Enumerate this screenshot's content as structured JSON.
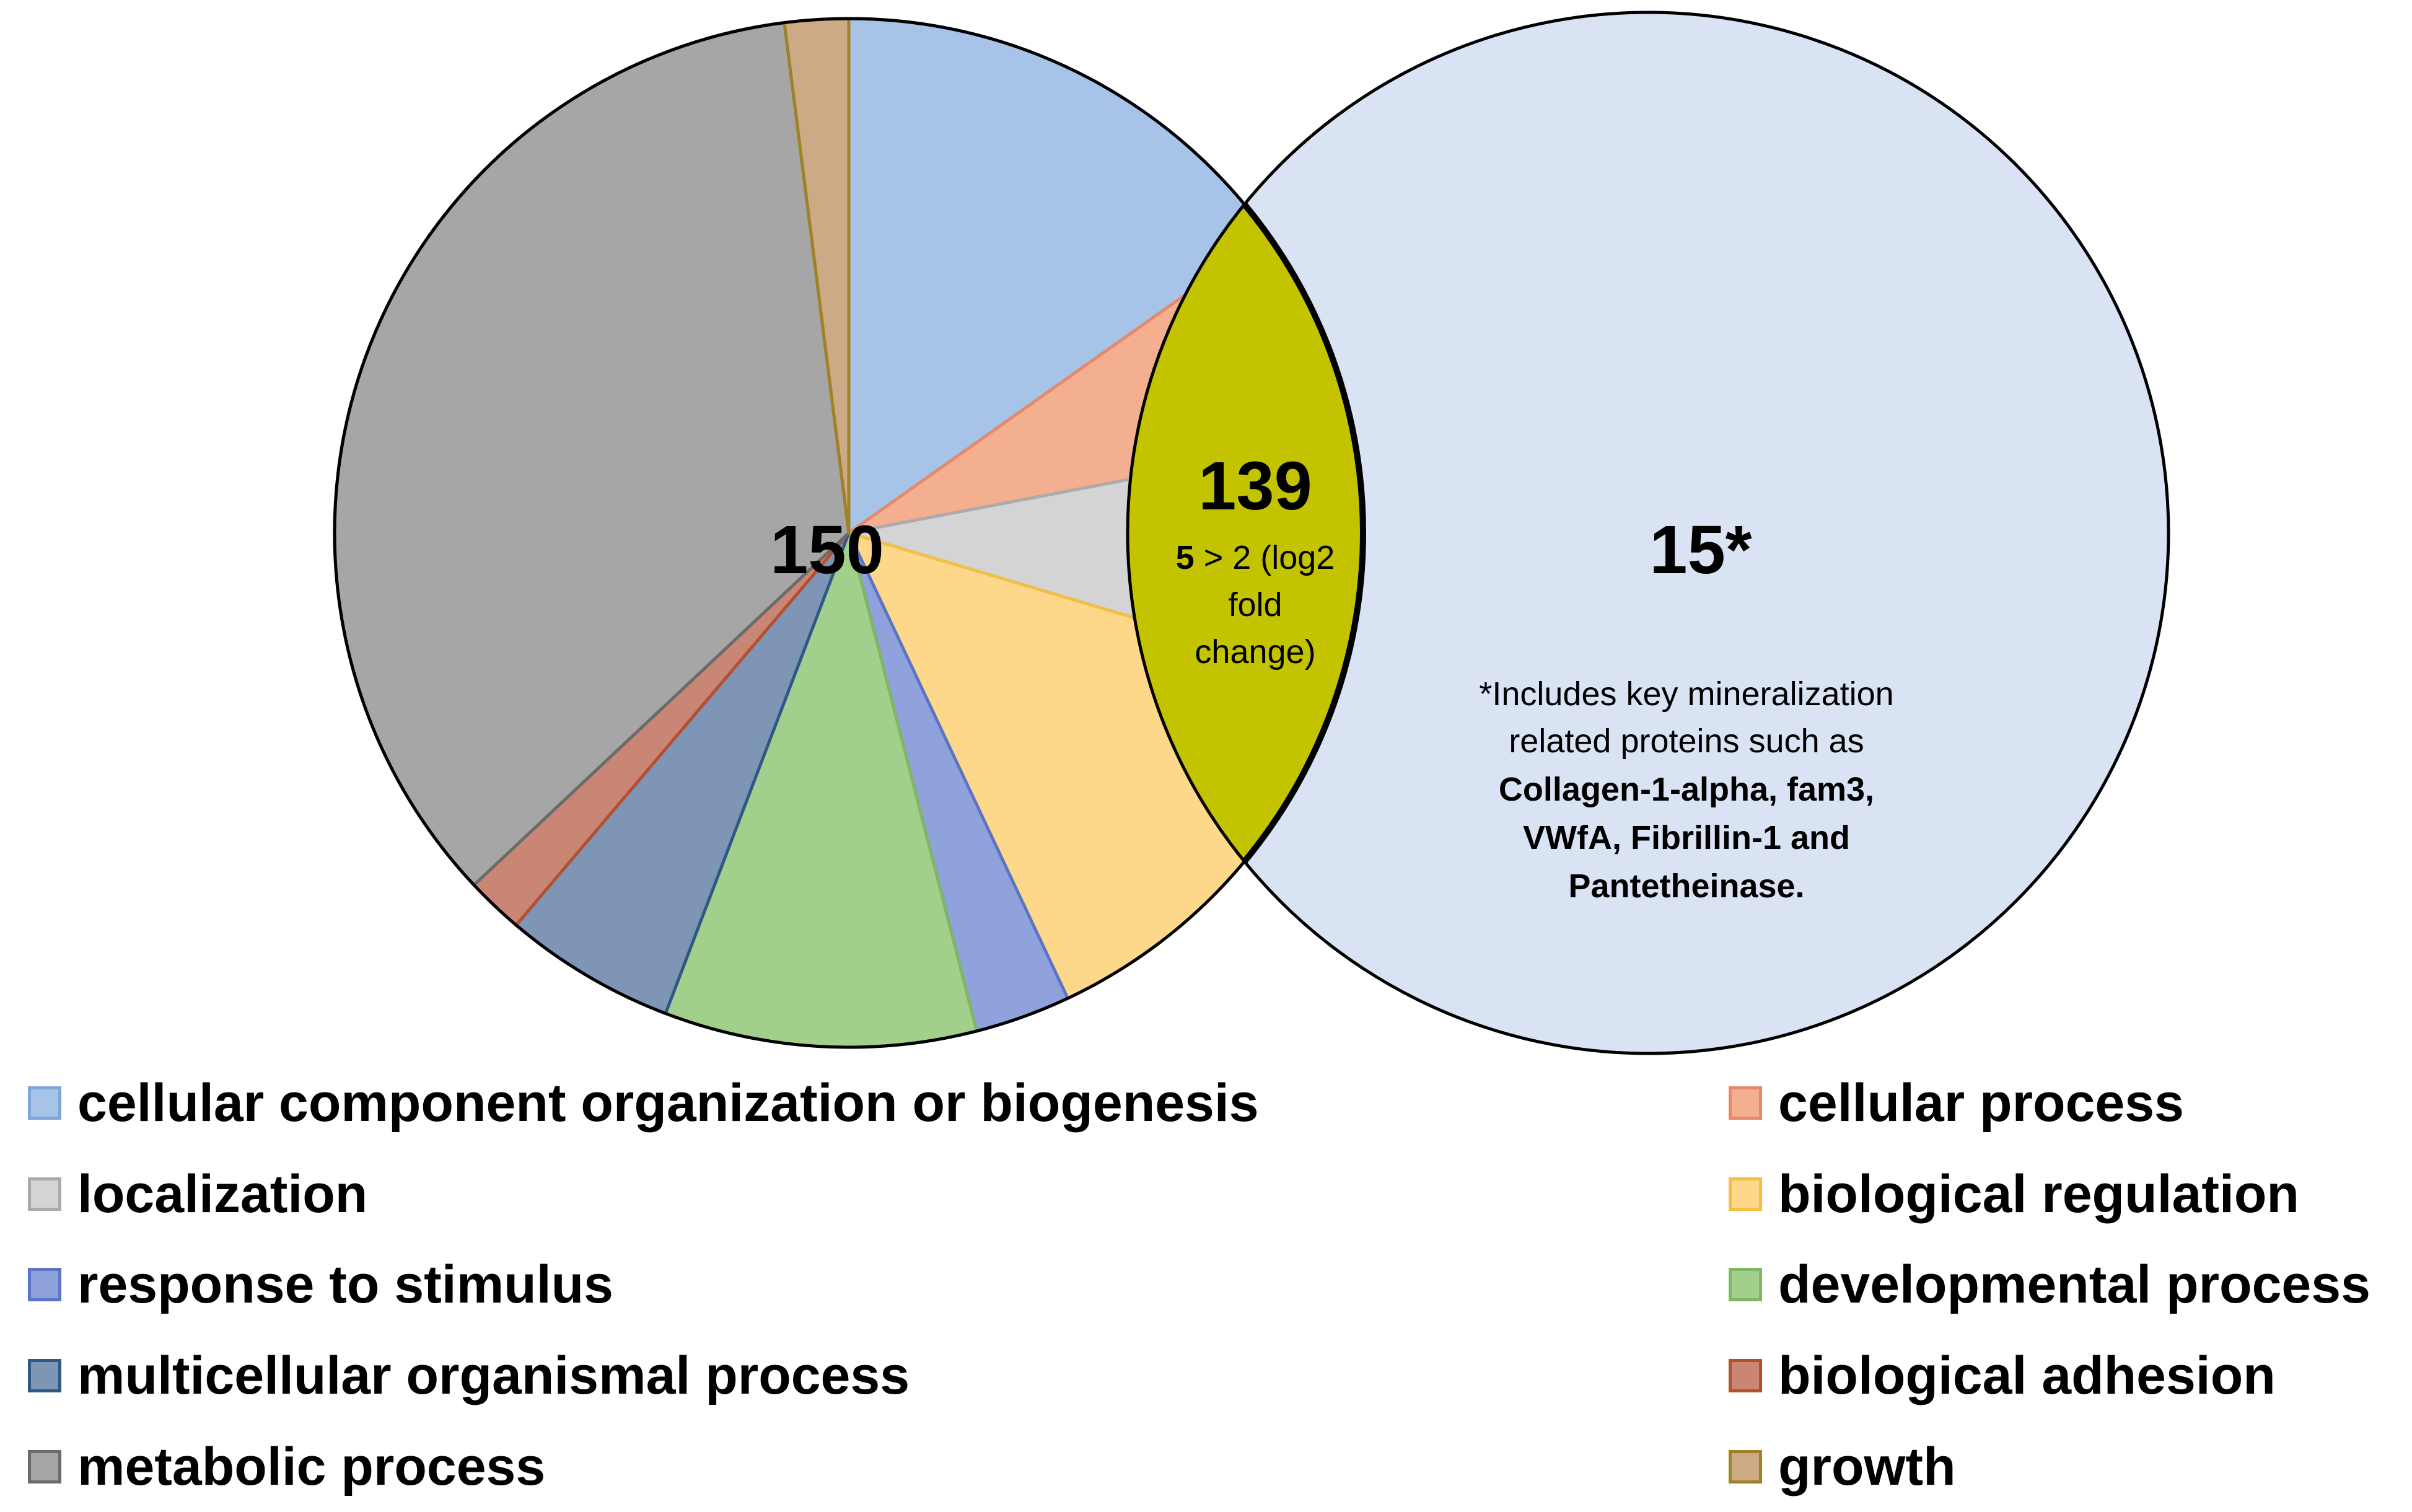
{
  "chart_data": {
    "type": "pie",
    "subtype": "venn-with-pie",
    "pie_total_label": "150",
    "slices": [
      {
        "name": "cellular component organization or biogenesis",
        "value": 15.2,
        "fill": "#A7C4E8",
        "stroke": "#7EA6D8"
      },
      {
        "name": "cellular process",
        "value": 6.8,
        "fill": "#F4AE90",
        "stroke": "#E6896A"
      },
      {
        "name": "localization",
        "value": 7.6,
        "fill": "#D4D4D4",
        "stroke": "#ABABAB"
      },
      {
        "name": "biological regulation",
        "value": 13.4,
        "fill": "#FDD88A",
        "stroke": "#F2BE44"
      },
      {
        "name": "response to stimulus",
        "value": 3.0,
        "fill": "#8FA2DC",
        "stroke": "#5B74C6"
      },
      {
        "name": "developmental process",
        "value": 9.8,
        "fill": "#A3CF8C",
        "stroke": "#7FB763"
      },
      {
        "name": "multicellular organismal process",
        "value": 5.4,
        "fill": "#7F95B6",
        "stroke": "#2F5886"
      },
      {
        "name": "biological adhesion",
        "value": 1.8,
        "fill": "#C98674",
        "stroke": "#B5502F"
      },
      {
        "name": "metabolic process",
        "value": 35.0,
        "fill": "#A6A6A6",
        "stroke": "#6B6B6B"
      },
      {
        "name": "growth",
        "value": 2.0,
        "fill": "#CCAA86",
        "stroke": "#A08224"
      }
    ],
    "overlap": {
      "count": "139",
      "note_bold": "5",
      "note_line1": " > 2 (log2",
      "note_line2": "fold",
      "note_line3": "change)",
      "fill": "#C3C300"
    },
    "right_circle": {
      "count": "15*",
      "fill": "#D9E3F3",
      "note_lines": [
        "*Includes key mineralization",
        "related proteins such as"
      ],
      "note_bold_lines": [
        "Collagen-1-alpha, fam3,",
        "VWfA, Fibrillin-1 and",
        "Pantetheinase."
      ]
    },
    "legend": {
      "left": [
        "cellular component organization or biogenesis",
        "localization",
        "response to stimulus",
        "multicellular organismal process",
        "metabolic process"
      ],
      "right": [
        "cellular process",
        "biological regulation",
        "developmental process",
        "biological adhesion",
        "growth"
      ]
    }
  }
}
